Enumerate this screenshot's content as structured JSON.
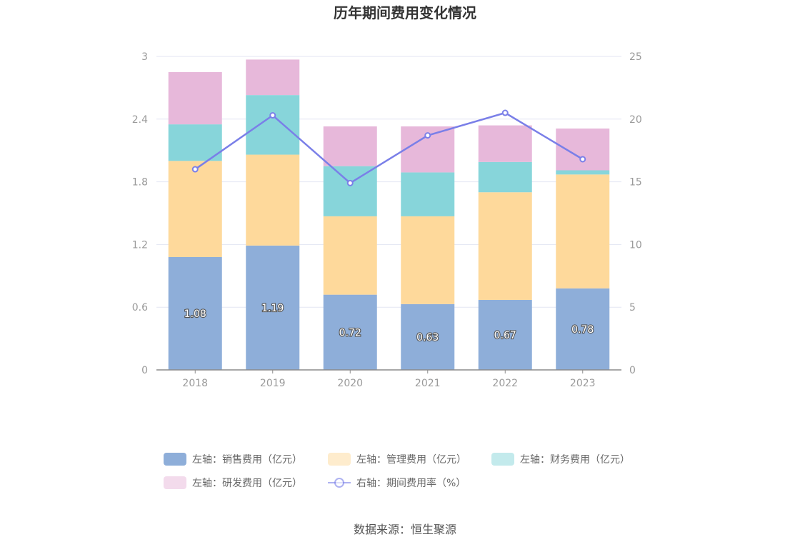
{
  "chart_data": {
    "type": "bar",
    "title": "历年期间费用变化情况",
    "categories": [
      "2018",
      "2019",
      "2020",
      "2021",
      "2022",
      "2023"
    ],
    "stacked": true,
    "ylim_left": [
      0,
      3
    ],
    "yticks_left": [
      "0",
      "0.6",
      "1.2",
      "1.8",
      "2.4",
      "3"
    ],
    "ylim_right": [
      0,
      25
    ],
    "yticks_right": [
      "0",
      "5",
      "10",
      "15",
      "20",
      "25"
    ],
    "grid": true,
    "legend_position": "bottom",
    "series": [
      {
        "name": "左轴：销售费用（亿元）",
        "type": "bar",
        "axis": "left",
        "color": "#8eaed9",
        "values": [
          1.08,
          1.19,
          0.72,
          0.63,
          0.67,
          0.78
        ],
        "labels": [
          "1.08",
          "1.19",
          "0.72",
          "0.63",
          "0.67",
          "0.78"
        ]
      },
      {
        "name": "左轴：管理费用（亿元）",
        "type": "bar",
        "axis": "left",
        "color": "#fed99b",
        "values": [
          0.92,
          0.87,
          0.75,
          0.84,
          1.03,
          1.09
        ]
      },
      {
        "name": "左轴：财务费用（亿元）",
        "type": "bar",
        "axis": "left",
        "color": "#87d5da",
        "values": [
          0.35,
          0.57,
          0.48,
          0.42,
          0.29,
          0.04
        ]
      },
      {
        "name": "左轴：研发费用（亿元）",
        "type": "bar",
        "axis": "left",
        "color": "#e7b8da",
        "values": [
          0.5,
          0.34,
          0.38,
          0.44,
          0.35,
          0.4
        ]
      },
      {
        "name": "右轴：期间费用率（%）",
        "type": "line",
        "axis": "right",
        "color": "#7a7fe8",
        "values": [
          16.0,
          20.3,
          14.9,
          18.7,
          20.5,
          16.8
        ]
      }
    ]
  },
  "source_label": "数据来源：恒生聚源"
}
